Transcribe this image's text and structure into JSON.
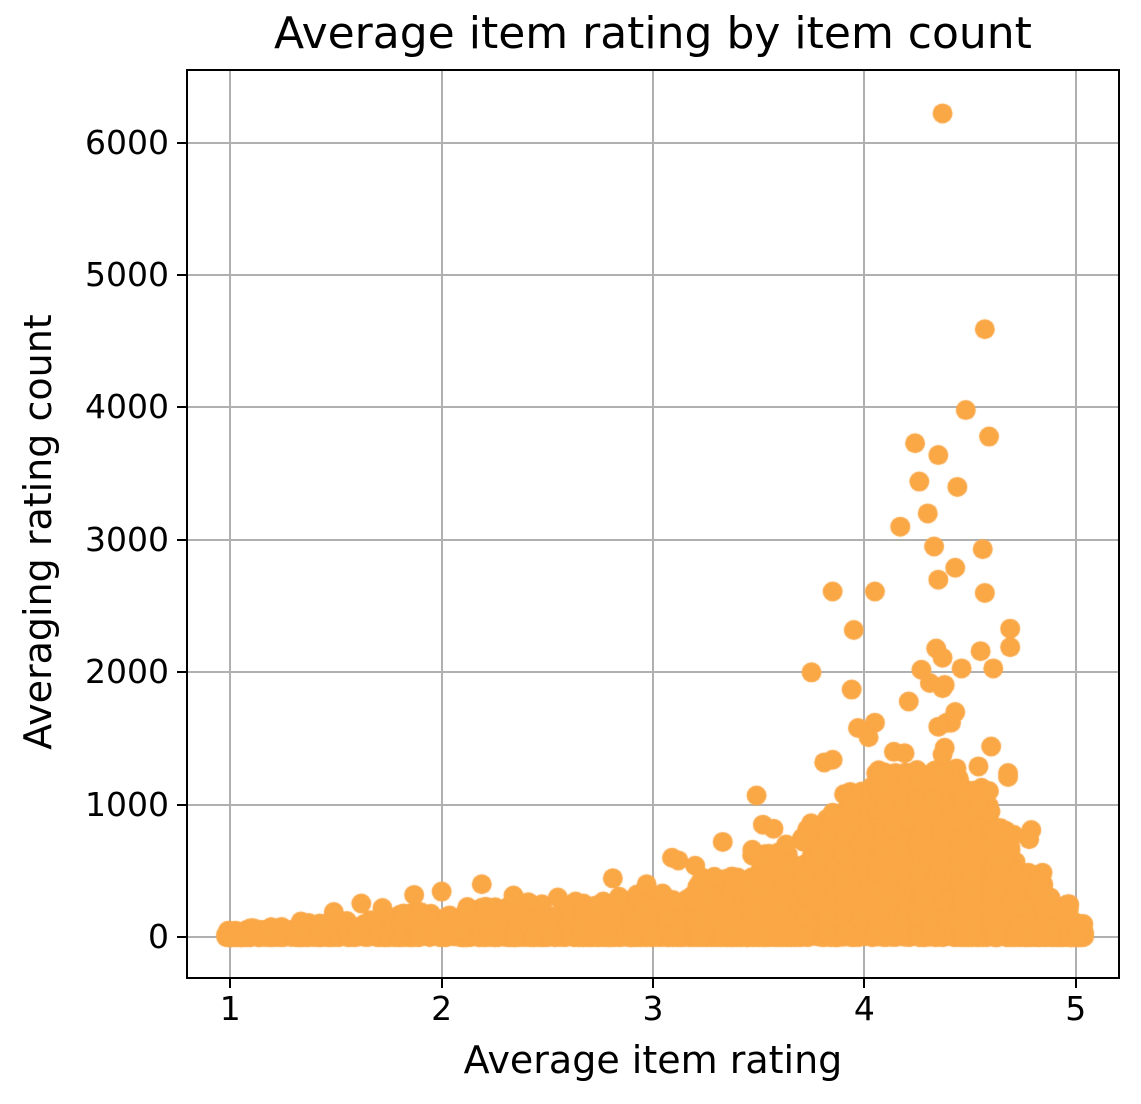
{
  "chart_data": {
    "type": "scatter",
    "title": "Average item rating by item count",
    "xlabel": "Average item rating",
    "ylabel": "Averaging rating count",
    "xlim": [
      0.8,
      5.2
    ],
    "ylim": [
      -300,
      6540
    ],
    "xticks": [
      1,
      2,
      3,
      4,
      5
    ],
    "yticks": [
      0,
      1000,
      2000,
      3000,
      4000,
      5000,
      6000
    ],
    "grid": true,
    "grid_color": "#b0b0b0",
    "background": "#ffffff",
    "marker_color": "#FAA746",
    "marker_radius_px": 10,
    "notable_points": [
      [
        4.37,
        6220
      ],
      [
        4.57,
        4590
      ],
      [
        4.48,
        3980
      ],
      [
        4.59,
        3780
      ],
      [
        4.24,
        3730
      ],
      [
        4.35,
        3640
      ],
      [
        4.26,
        3440
      ],
      [
        4.44,
        3400
      ],
      [
        4.3,
        3200
      ],
      [
        4.17,
        3100
      ],
      [
        4.33,
        2950
      ],
      [
        4.56,
        2930
      ],
      [
        4.43,
        2790
      ],
      [
        4.35,
        2700
      ],
      [
        3.85,
        2610
      ],
      [
        4.05,
        2610
      ],
      [
        4.57,
        2600
      ],
      [
        4.69,
        2330
      ],
      [
        3.95,
        2320
      ],
      [
        4.69,
        2190
      ],
      [
        4.34,
        2180
      ],
      [
        4.55,
        2160
      ],
      [
        4.37,
        2110
      ],
      [
        4.61,
        2030
      ],
      [
        4.46,
        2030
      ],
      [
        4.27,
        2020
      ],
      [
        3.75,
        2000
      ],
      [
        4.31,
        1920
      ],
      [
        4.38,
        1905
      ],
      [
        4.37,
        1880
      ],
      [
        3.94,
        1870
      ],
      [
        4.21,
        1780
      ],
      [
        4.43,
        1700
      ],
      [
        4.39,
        1620
      ],
      [
        4.41,
        1620
      ],
      [
        4.05,
        1620
      ],
      [
        4.35,
        1590
      ],
      [
        3.97,
        1580
      ],
      [
        4.02,
        1510
      ],
      [
        4.6,
        1440
      ],
      [
        4.38,
        1430
      ],
      [
        4.14,
        1400
      ],
      [
        4.19,
        1390
      ],
      [
        4.37,
        1380
      ],
      [
        3.85,
        1340
      ],
      [
        3.81,
        1320
      ],
      [
        4.54,
        1290
      ],
      [
        4.68,
        1240
      ],
      [
        4.68,
        1210
      ],
      [
        3.49,
        1070
      ],
      [
        3.85,
        940
      ],
      [
        3.52,
        850
      ],
      [
        3.57,
        820
      ],
      [
        3.63,
        700
      ],
      [
        3.33,
        720
      ],
      [
        3.47,
        660
      ],
      [
        3.09,
        600
      ],
      [
        3.12,
        580
      ],
      [
        3.2,
        540
      ],
      [
        4.79,
        810
      ],
      [
        4.78,
        740
      ],
      [
        4.83,
        430
      ],
      [
        4.81,
        360
      ],
      [
        4.88,
        300
      ],
      [
        2.81,
        445
      ],
      [
        2.97,
        400
      ],
      [
        2.84,
        305
      ],
      [
        2.73,
        240
      ],
      [
        2.55,
        300
      ],
      [
        2.41,
        265
      ],
      [
        2.34,
        315
      ],
      [
        2.19,
        400
      ],
      [
        2.0,
        345
      ],
      [
        1.87,
        320
      ],
      [
        1.82,
        180
      ],
      [
        1.72,
        220
      ],
      [
        1.62,
        255
      ],
      [
        1.49,
        190
      ]
    ],
    "dense_cloud": {
      "note": "Several thousand overlapping points hugging y=0, envelope rising from ~50 at rating 1 to ~1280 near rating 4.3, tapering to ~110 at rating 5. Each strip: [x_min, x_max, n_points, y_envelope, low_bias_exponent].",
      "seed": 42,
      "strips": [
        [
          0.98,
          1.06,
          80,
          50,
          3.0
        ],
        [
          1.06,
          1.3,
          80,
          80,
          2.8
        ],
        [
          1.3,
          1.55,
          90,
          120,
          2.8
        ],
        [
          1.55,
          1.8,
          95,
          160,
          2.8
        ],
        [
          1.8,
          2.05,
          100,
          190,
          2.8
        ],
        [
          2.05,
          2.3,
          110,
          230,
          2.8
        ],
        [
          2.3,
          2.6,
          120,
          250,
          2.8
        ],
        [
          2.6,
          2.9,
          130,
          280,
          2.8
        ],
        [
          2.9,
          3.2,
          150,
          340,
          2.7
        ],
        [
          3.2,
          3.45,
          155,
          470,
          2.6
        ],
        [
          3.45,
          3.7,
          185,
          650,
          2.4
        ],
        [
          3.7,
          3.9,
          210,
          900,
          2.1
        ],
        [
          3.9,
          4.05,
          240,
          1150,
          1.8
        ],
        [
          4.05,
          4.25,
          330,
          1270,
          1.6
        ],
        [
          4.25,
          4.45,
          340,
          1280,
          1.6
        ],
        [
          4.45,
          4.6,
          280,
          1150,
          1.7
        ],
        [
          4.6,
          4.72,
          210,
          830,
          1.8
        ],
        [
          4.72,
          4.85,
          190,
          500,
          2.0
        ],
        [
          4.85,
          4.97,
          160,
          250,
          2.2
        ],
        [
          4.97,
          5.04,
          90,
          110,
          2.2
        ]
      ]
    }
  }
}
